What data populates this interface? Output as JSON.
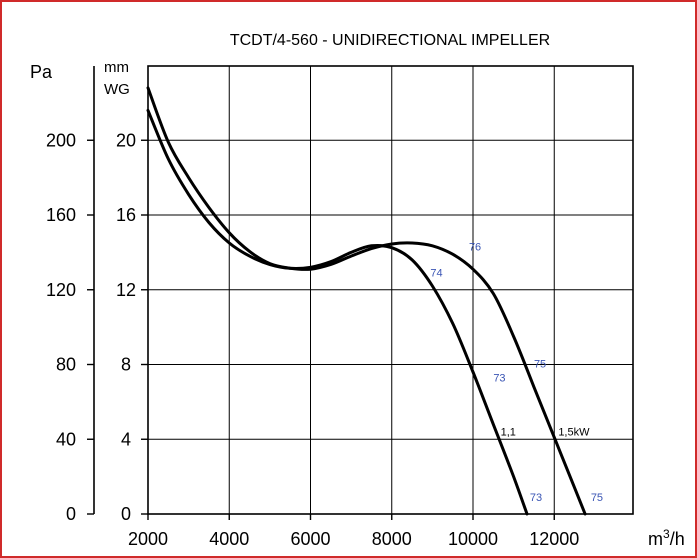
{
  "chart_data": {
    "type": "line",
    "title": "TCDT/4-560  - UNIDIRECTIONAL IMPELLER",
    "xlabel": "m³/h",
    "ylabel_left": "Pa",
    "ylabel_right": [
      "mm",
      "WG"
    ],
    "x_ticks": [
      2000,
      4000,
      6000,
      8000,
      10000,
      12000
    ],
    "y_ticks_pa": [
      0,
      40,
      80,
      120,
      160,
      200
    ],
    "y_ticks_mmwg": [
      0,
      4,
      8,
      12,
      16,
      20
    ],
    "xlim": [
      2000,
      13900
    ],
    "ylim": [
      0,
      240
    ],
    "grid": true,
    "series": [
      {
        "name": "1,1",
        "points": [
          [
            2000,
            216
          ],
          [
            2500,
            190
          ],
          [
            3000,
            171
          ],
          [
            3500,
            156
          ],
          [
            4000,
            145
          ],
          [
            4500,
            138
          ],
          [
            5000,
            133.5
          ],
          [
            5500,
            131.5
          ],
          [
            6000,
            132
          ],
          [
            6500,
            135
          ],
          [
            7000,
            140
          ],
          [
            7500,
            143.5
          ],
          [
            8000,
            142.5
          ],
          [
            8500,
            136
          ],
          [
            9000,
            122
          ],
          [
            9500,
            102
          ],
          [
            10000,
            76
          ],
          [
            10500,
            48
          ],
          [
            11000,
            20
          ],
          [
            11330,
            0
          ]
        ]
      },
      {
        "name": "1,5kW",
        "points": [
          [
            2000,
            228
          ],
          [
            2500,
            199
          ],
          [
            3000,
            180
          ],
          [
            3500,
            164
          ],
          [
            4000,
            150.5
          ],
          [
            4500,
            140.5
          ],
          [
            5000,
            134
          ],
          [
            5500,
            131.5
          ],
          [
            6000,
            131
          ],
          [
            6500,
            133.5
          ],
          [
            7000,
            138
          ],
          [
            7500,
            142
          ],
          [
            8000,
            144.5
          ],
          [
            8500,
            145
          ],
          [
            9000,
            143.5
          ],
          [
            9500,
            139
          ],
          [
            10000,
            131
          ],
          [
            10500,
            118
          ],
          [
            11000,
            95
          ],
          [
            11500,
            68
          ],
          [
            12000,
            41
          ],
          [
            12500,
            14
          ],
          [
            12760,
            0
          ]
        ]
      }
    ],
    "annotations": {
      "efficiency": [
        {
          "text": "76",
          "x": 9900,
          "y": 141
        },
        {
          "text": "74",
          "x": 8950,
          "y": 127
        },
        {
          "text": "75",
          "x": 11500,
          "y": 78.5
        },
        {
          "text": "73",
          "x": 10500,
          "y": 71
        },
        {
          "text": "73",
          "x": 11400,
          "y": 7
        },
        {
          "text": "75",
          "x": 12900,
          "y": 7
        }
      ],
      "power": [
        {
          "text": "1,1",
          "x": 10680,
          "y": 42
        },
        {
          "text": "1,5kW",
          "x": 12100,
          "y": 42
        }
      ]
    }
  }
}
